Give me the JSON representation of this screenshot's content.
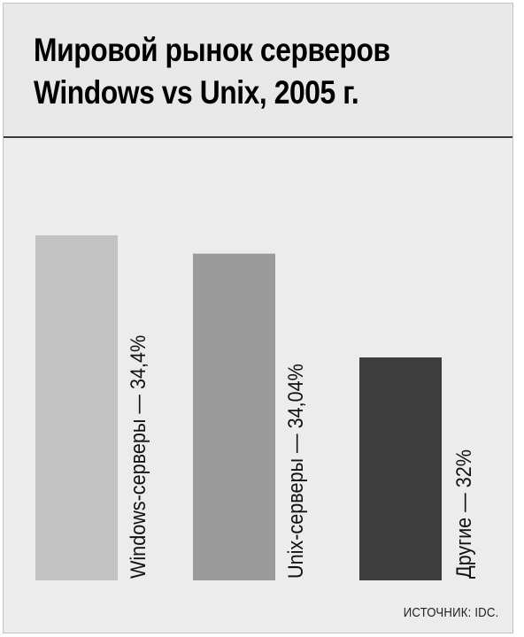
{
  "chart_data": {
    "type": "bar",
    "title_lines": [
      "Мировой рынок серверов",
      "Windows vs Unix, 2005 г."
    ],
    "categories": [
      "Windows-серверы",
      "Unix-серверы",
      "Другие"
    ],
    "values": [
      34.4,
      34.04,
      32
    ],
    "labels": [
      "Windows-серверы — 34,4%",
      "Unix-серверы — 34,04%",
      "Другие — 32%"
    ],
    "colors": [
      "#c2c2c2",
      "#9a9a9a",
      "#3d3d3d"
    ],
    "unit": "%",
    "source": "ИСТОЧНИК: IDC.",
    "grid": false,
    "legend": "none"
  }
}
